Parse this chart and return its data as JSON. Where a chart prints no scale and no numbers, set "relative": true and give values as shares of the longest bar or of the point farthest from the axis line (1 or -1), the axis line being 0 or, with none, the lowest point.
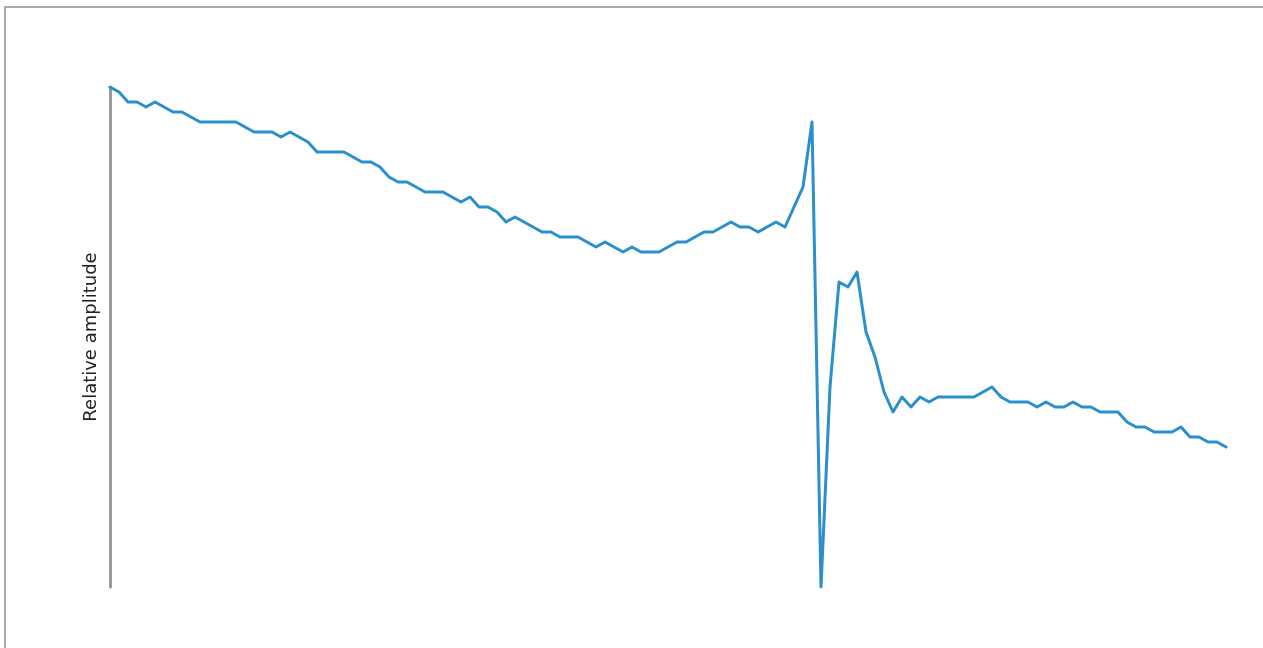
{
  "chart_data": {
    "type": "line",
    "relative": true,
    "ylabel": "Relative amplitude",
    "categories": [
      null,
      null,
      null,
      null,
      null,
      null,
      null,
      null,
      null,
      null,
      null,
      null,
      null,
      null,
      null,
      null,
      null,
      null,
      null,
      null,
      null,
      null,
      null,
      null,
      null,
      null,
      null,
      null,
      null,
      null,
      null,
      null,
      null,
      null,
      null,
      null,
      null,
      null,
      null,
      null,
      null,
      null,
      null,
      null,
      null,
      null,
      null,
      null,
      null,
      null,
      null,
      null,
      null,
      null,
      null,
      null,
      null,
      null,
      null,
      null,
      null,
      null,
      null,
      null,
      null,
      null,
      null,
      null,
      null,
      null,
      null,
      null,
      null,
      null,
      null,
      null,
      null,
      null,
      null,
      null,
      null,
      null,
      null,
      null,
      null,
      null,
      null,
      null,
      null,
      null,
      null,
      null,
      null,
      null,
      null,
      null,
      null,
      null,
      null,
      null,
      null,
      null,
      null,
      null,
      null,
      null,
      null,
      null,
      null,
      null,
      null,
      null,
      null,
      null,
      null,
      null,
      null,
      null,
      null,
      null,
      null,
      null,
      null,
      null,
      null
    ],
    "series": [
      {
        "color": "#2b8fcc",
        "values": [
          1,
          0.99,
          0.97,
          0.97,
          0.96,
          0.97,
          0.96,
          0.95,
          0.95,
          0.94,
          0.93,
          0.93,
          0.93,
          0.93,
          0.93,
          0.92,
          0.91,
          0.91,
          0.91,
          0.9,
          0.91,
          0.9,
          0.89,
          0.87,
          0.87,
          0.87,
          0.87,
          0.86,
          0.85,
          0.85,
          0.84,
          0.82,
          0.81,
          0.81,
          0.8,
          0.79,
          0.79,
          0.79,
          0.78,
          0.77,
          0.78,
          0.76,
          0.76,
          0.75,
          0.73,
          0.74,
          0.73,
          0.72,
          0.71,
          0.71,
          0.7,
          0.7,
          0.7,
          0.69,
          0.68,
          0.69,
          0.68,
          0.67,
          0.68,
          0.67,
          0.67,
          0.67,
          0.68,
          0.69,
          0.69,
          0.7,
          0.71,
          0.71,
          0.72,
          0.73,
          0.72,
          0.72,
          0.71,
          0.72,
          0.73,
          0.72,
          0.76,
          0.8,
          0.93,
          0,
          0.4,
          0.61,
          0.6,
          0.63,
          0.51,
          0.46,
          0.39,
          0.35,
          0.38,
          0.36,
          0.38,
          0.37,
          0.38,
          0.38,
          0.38,
          0.38,
          0.38,
          0.39,
          0.4,
          0.38,
          0.37,
          0.37,
          0.37,
          0.36,
          0.37,
          0.36,
          0.36,
          0.37,
          0.36,
          0.36,
          0.35,
          0.35,
          0.35,
          0.33,
          0.32,
          0.32,
          0.31,
          0.31,
          0.31,
          0.32,
          0.3,
          0.3,
          0.29,
          0.29,
          0.28
        ]
      }
    ],
    "grid": false,
    "marker": "none",
    "line_style": "solid"
  }
}
